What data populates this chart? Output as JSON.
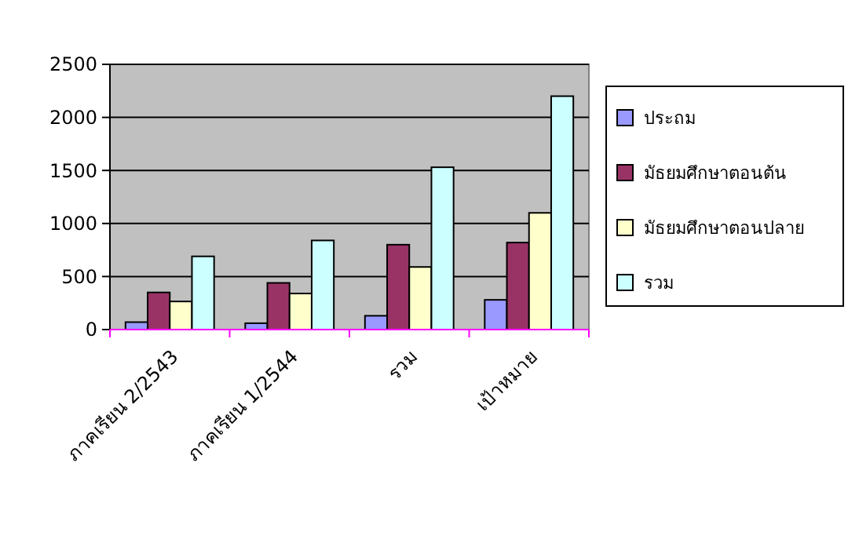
{
  "chart_data": {
    "type": "bar",
    "categories": [
      "ภาคเรียน 2/2543",
      "ภาคเรียน 1/2544",
      "รวม",
      "เป้าหมาย"
    ],
    "series": [
      {
        "name": "ประถม",
        "color": "#9999ff",
        "values": [
          70,
          60,
          130,
          280
        ]
      },
      {
        "name": "มัธยมศึกษาตอนต้น",
        "color": "#993366",
        "values": [
          350,
          440,
          800,
          820
        ]
      },
      {
        "name": "มัธยมศึกษาตอนปลาย",
        "color": "#ffffcc",
        "values": [
          265,
          340,
          590,
          1100
        ]
      },
      {
        "name": "รวม",
        "color": "#ccffff",
        "values": [
          690,
          840,
          1530,
          2200
        ]
      }
    ],
    "ylim": [
      0,
      2500
    ],
    "yticks": [
      0,
      500,
      1000,
      1500,
      2000,
      2500
    ],
    "grid": "y",
    "legend": "right"
  }
}
